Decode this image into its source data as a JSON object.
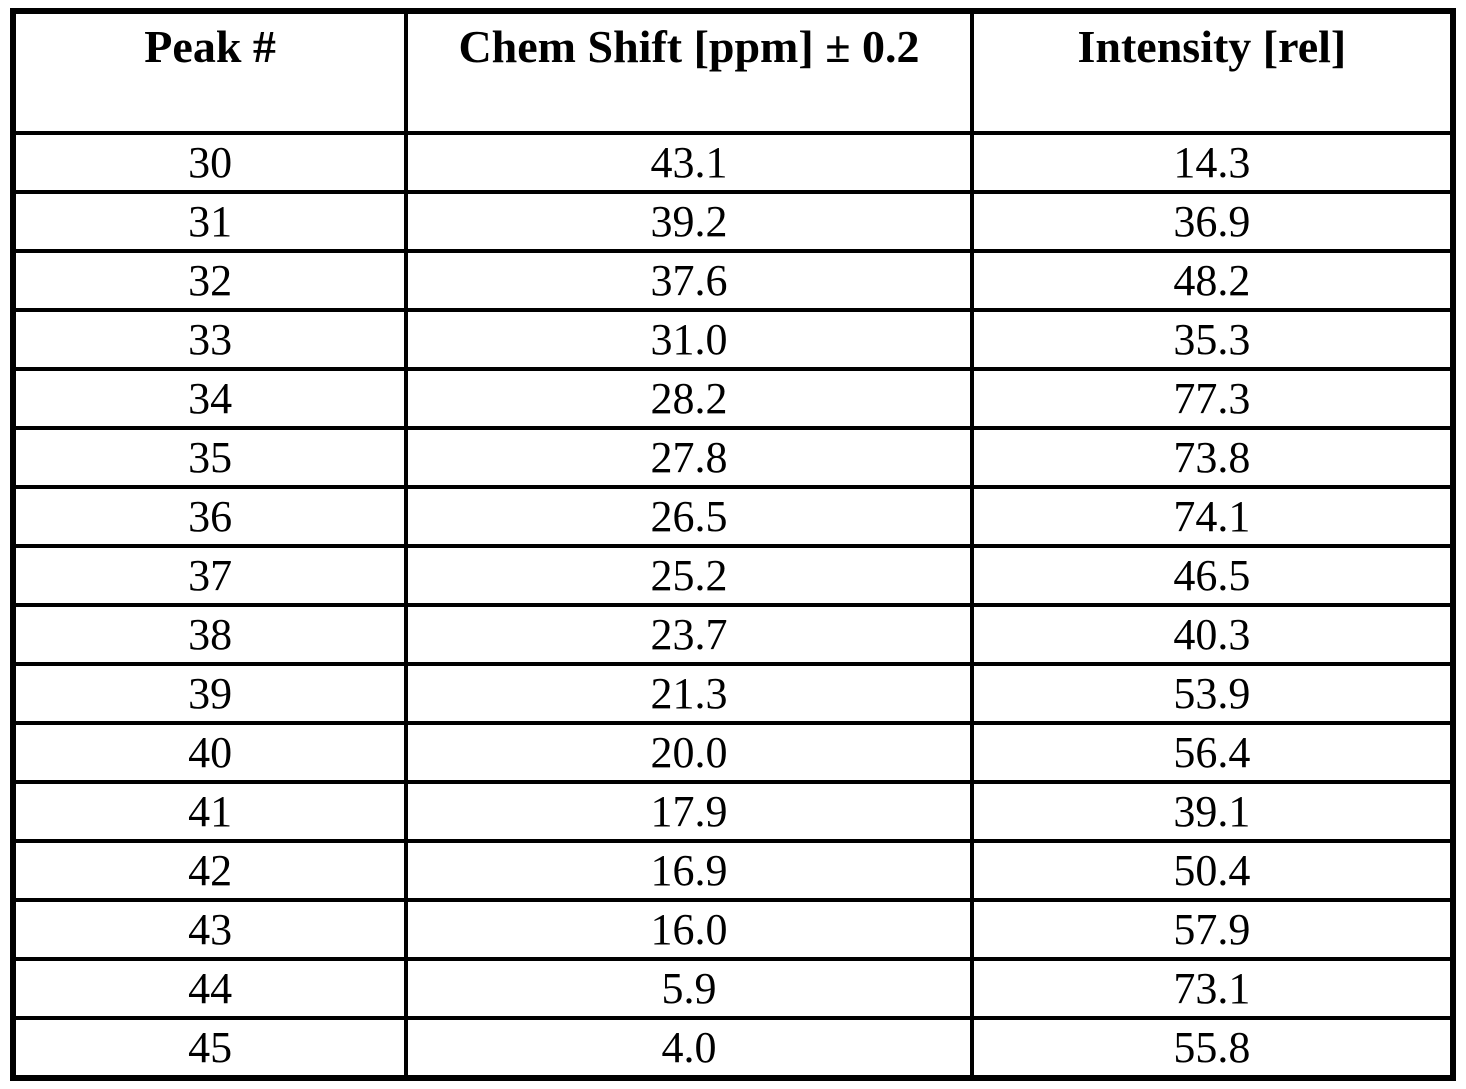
{
  "colors": {
    "border": "#000000",
    "background": "#ffffff",
    "text": "#000000"
  },
  "table": {
    "headers": [
      "Peak #",
      "Chem Shift [ppm] ± 0.2",
      "Intensity [rel]"
    ],
    "rows": [
      [
        "30",
        "43.1",
        "14.3"
      ],
      [
        "31",
        "39.2",
        "36.9"
      ],
      [
        "32",
        "37.6",
        "48.2"
      ],
      [
        "33",
        "31.0",
        "35.3"
      ],
      [
        "34",
        "28.2",
        "77.3"
      ],
      [
        "35",
        "27.8",
        "73.8"
      ],
      [
        "36",
        "26.5",
        "74.1"
      ],
      [
        "37",
        "25.2",
        "46.5"
      ],
      [
        "38",
        "23.7",
        "40.3"
      ],
      [
        "39",
        "21.3",
        "53.9"
      ],
      [
        "40",
        "20.0",
        "56.4"
      ],
      [
        "41",
        "17.9",
        "39.1"
      ],
      [
        "42",
        "16.9",
        "50.4"
      ],
      [
        "43",
        "16.0",
        "57.9"
      ],
      [
        "44",
        "5.9",
        "73.1"
      ],
      [
        "45",
        "4.0",
        "55.8"
      ]
    ]
  },
  "chart_data": {
    "type": "table",
    "title": "",
    "columns": [
      "Peak #",
      "Chem Shift [ppm] ± 0.2",
      "Intensity [rel]"
    ],
    "rows": [
      [
        30,
        43.1,
        14.3
      ],
      [
        31,
        39.2,
        36.9
      ],
      [
        32,
        37.6,
        48.2
      ],
      [
        33,
        31.0,
        35.3
      ],
      [
        34,
        28.2,
        77.3
      ],
      [
        35,
        27.8,
        73.8
      ],
      [
        36,
        26.5,
        74.1
      ],
      [
        37,
        25.2,
        46.5
      ],
      [
        38,
        23.7,
        40.3
      ],
      [
        39,
        21.3,
        53.9
      ],
      [
        40,
        20.0,
        56.4
      ],
      [
        41,
        17.9,
        39.1
      ],
      [
        42,
        16.9,
        50.4
      ],
      [
        43,
        16.0,
        57.9
      ],
      [
        44,
        5.9,
        73.1
      ],
      [
        45,
        4.0,
        55.8
      ]
    ]
  }
}
